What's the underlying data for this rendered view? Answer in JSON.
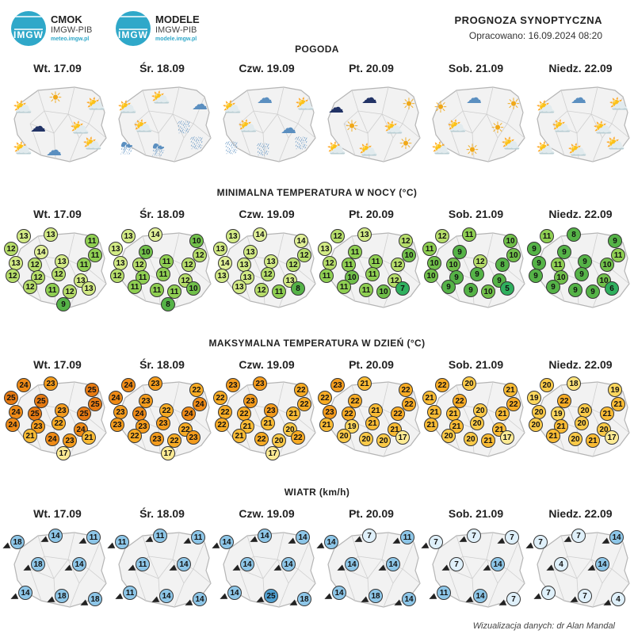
{
  "header": {
    "logo1": {
      "title": "CMOK",
      "sub": "IMGW-PIB",
      "url": "meteo.imgw.pl"
    },
    "logo2": {
      "title": "MODELE",
      "sub": "IMGW-PIB",
      "url": "modele.imgw.pl"
    },
    "badge_text": "IMGW",
    "title": "PROGNOZA SYNOPTYCZNA",
    "prepared": "Opracowano: 16.09.2024 08:20"
  },
  "sections": {
    "weather": "POGODA",
    "tmin": "MINIMALNA TEMPERATURA W NOCY (°C)",
    "tmax": "MAKSYMALNA TEMPERATURA W DZIEŃ (°C)",
    "wind": "WIATR (km/h)"
  },
  "days": [
    "Wt. 17.09",
    "Śr. 18.09",
    "Czw. 19.09",
    "Pt. 20.09",
    "Sob. 21.09",
    "Niedz. 22.09"
  ],
  "colors": {
    "map_fill": "#f2f2f2",
    "map_border": "#b5b5b5",
    "wind": "#8dc6e8",
    "wind_light": "#dff0fa"
  },
  "tmin": [
    [
      "13",
      "13",
      "11",
      "12",
      "11",
      "14",
      "13",
      "12",
      "13",
      "11",
      "12",
      "12",
      "12",
      "13",
      "12",
      "11",
      "12",
      "13",
      "9"
    ],
    [
      "13",
      "14",
      "10",
      "13",
      "12",
      "10",
      "13",
      "12",
      "11",
      "12",
      "12",
      "11",
      "11",
      "12",
      "11",
      "11",
      "11",
      "10",
      "8"
    ],
    [
      "13",
      "14",
      "14",
      "13",
      "12",
      "13",
      "14",
      "13",
      "13",
      "12",
      "13",
      "13",
      "12",
      "13",
      "13",
      "12",
      "11",
      "8",
      ""
    ],
    [
      "12",
      "13",
      "12",
      "13",
      "10",
      "11",
      "12",
      "11",
      "11",
      "12",
      "11",
      "10",
      "11",
      "12",
      "11",
      "11",
      "10",
      "7",
      ""
    ],
    [
      "12",
      "11",
      "10",
      "11",
      "10",
      "9",
      "10",
      "10",
      "12",
      "8",
      "10",
      "9",
      "9",
      "9",
      "9",
      "9",
      "10",
      "5",
      ""
    ],
    [
      "11",
      "8",
      "9",
      "9",
      "11",
      "9",
      "9",
      "11",
      "9",
      "10",
      "9",
      "10",
      "9",
      "10",
      "9",
      "9",
      "9",
      "6",
      ""
    ]
  ],
  "tmax": [
    [
      "24",
      "23",
      "25",
      "25",
      "25",
      "25",
      "24",
      "25",
      "23",
      "25",
      "24",
      "23",
      "22",
      "24",
      "21",
      "24",
      "23",
      "21",
      "17"
    ],
    [
      "24",
      "23",
      "22",
      "24",
      "24",
      "23",
      "23",
      "24",
      "22",
      "24",
      "23",
      "23",
      "23",
      "22",
      "22",
      "23",
      "22",
      "23",
      "17"
    ],
    [
      "23",
      "23",
      "22",
      "22",
      "22",
      "23",
      "22",
      "22",
      "23",
      "21",
      "22",
      "21",
      "21",
      "20",
      "21",
      "22",
      "20",
      "22",
      "17"
    ],
    [
      "23",
      "21",
      "22",
      "22",
      "22",
      "22",
      "23",
      "22",
      "21",
      "22",
      "21",
      "19",
      "21",
      "21",
      "20",
      "20",
      "20",
      "17",
      ""
    ],
    [
      "22",
      "20",
      "21",
      "21",
      "22",
      "22",
      "21",
      "21",
      "20",
      "21",
      "21",
      "21",
      "20",
      "21",
      "20",
      "20",
      "21",
      "17",
      ""
    ],
    [
      "20",
      "18",
      "19",
      "19",
      "21",
      "22",
      "20",
      "19",
      "20",
      "21",
      "20",
      "21",
      "20",
      "20",
      "21",
      "20",
      "21",
      "17",
      ""
    ]
  ],
  "wind": [
    [
      "18",
      "14",
      "11",
      "18",
      "14",
      "14",
      "18",
      "18"
    ],
    [
      "11",
      "11",
      "11",
      "11",
      "14",
      "11",
      "14",
      "14"
    ],
    [
      "14",
      "14",
      "14",
      "14",
      "14",
      "14",
      "25",
      "18"
    ],
    [
      "14",
      "7",
      "11",
      "14",
      "14",
      "14",
      "18",
      "14"
    ],
    [
      "7",
      "7",
      "7",
      "7",
      "14",
      "11",
      "14",
      "7"
    ],
    [
      "7",
      "7",
      "14",
      "4",
      "14",
      "7",
      "7",
      "4"
    ]
  ],
  "weather_icons": [
    [
      "sun-cloud",
      "sun",
      "sun-cloud",
      "storm-cloud",
      "sun-cloud",
      "sun-cloud",
      "cloud",
      "sun-cloud"
    ],
    [
      "sun-cloud",
      "sun-cloud",
      "cloud",
      "sun-cloud",
      "rain-cloud",
      "rain-cloud",
      "storm-rain",
      "storm-rain"
    ],
    [
      "sun-cloud",
      "cloud",
      "sun-cloud",
      "sun-cloud",
      "cloud",
      "rain-cloud",
      "rain-cloud",
      "rain-cloud"
    ],
    [
      "storm-cloud",
      "storm-cloud",
      "sun",
      "sun",
      "sun-cloud",
      "sun",
      "sun-cloud",
      "sun-cloud"
    ],
    [
      "sun",
      "cloud",
      "sun",
      "sun-cloud",
      "sun",
      "sun-cloud",
      "sun",
      "sun-cloud"
    ],
    [
      "sun-cloud",
      "cloud",
      "sun-cloud",
      "sun-cloud",
      "sun-cloud",
      "sun-cloud",
      "sun-cloud",
      "sun-cloud"
    ]
  ],
  "footer": "Wizualizacja danych: dr Alan Mandal"
}
